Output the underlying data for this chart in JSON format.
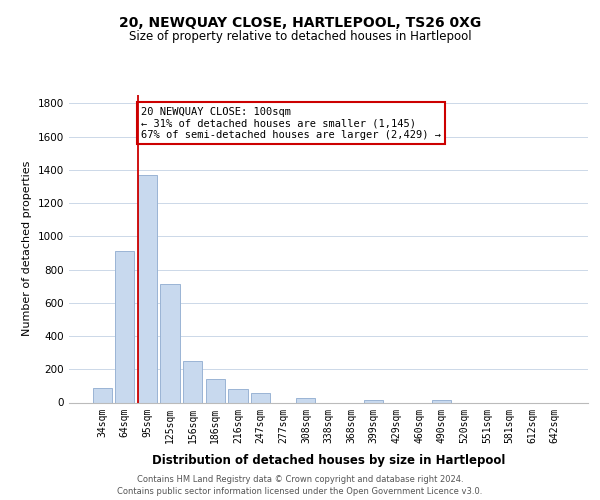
{
  "title": "20, NEWQUAY CLOSE, HARTLEPOOL, TS26 0XG",
  "subtitle": "Size of property relative to detached houses in Hartlepool",
  "xlabel": "Distribution of detached houses by size in Hartlepool",
  "ylabel": "Number of detached properties",
  "categories": [
    "34sqm",
    "64sqm",
    "95sqm",
    "125sqm",
    "156sqm",
    "186sqm",
    "216sqm",
    "247sqm",
    "277sqm",
    "308sqm",
    "338sqm",
    "368sqm",
    "399sqm",
    "429sqm",
    "460sqm",
    "490sqm",
    "520sqm",
    "551sqm",
    "581sqm",
    "612sqm",
    "642sqm"
  ],
  "values": [
    90,
    910,
    1370,
    710,
    250,
    140,
    80,
    55,
    0,
    30,
    0,
    0,
    15,
    0,
    0,
    15,
    0,
    0,
    0,
    0,
    0
  ],
  "bar_color": "#c8d9ee",
  "bar_edge_color": "#9ab4d4",
  "vline_color": "#cc0000",
  "annotation_line1": "20 NEWQUAY CLOSE: 100sqm",
  "annotation_line2": "← 31% of detached houses are smaller (1,145)",
  "annotation_line3": "67% of semi-detached houses are larger (2,429) →",
  "annotation_box_color": "#ffffff",
  "annotation_box_edge": "#cc0000",
  "ylim": [
    0,
    1850
  ],
  "yticks": [
    0,
    200,
    400,
    600,
    800,
    1000,
    1200,
    1400,
    1600,
    1800
  ],
  "footer_line1": "Contains HM Land Registry data © Crown copyright and database right 2024.",
  "footer_line2": "Contains public sector information licensed under the Open Government Licence v3.0.",
  "background_color": "#ffffff",
  "grid_color": "#ccd8e8",
  "title_fontsize": 10,
  "subtitle_fontsize": 8.5,
  "ylabel_fontsize": 8,
  "xlabel_fontsize": 8.5,
  "tick_fontsize": 7,
  "annot_fontsize": 7.5,
  "footer_fontsize": 6
}
